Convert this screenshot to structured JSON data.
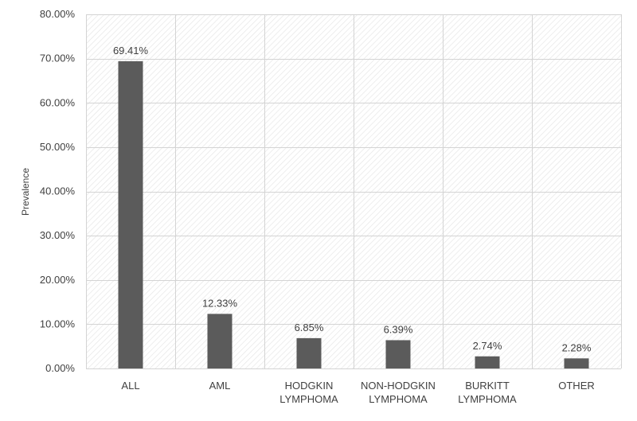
{
  "chart_data": {
    "type": "bar",
    "title": "",
    "xlabel": "",
    "ylabel": "Prevalence",
    "ylim": [
      0,
      80
    ],
    "y_ticks": [
      "0.00%",
      "10.00%",
      "20.00%",
      "30.00%",
      "40.00%",
      "50.00%",
      "60.00%",
      "70.00%",
      "80.00%"
    ],
    "y_tick_values": [
      0,
      10,
      20,
      30,
      40,
      50,
      60,
      70,
      80
    ],
    "categories": [
      [
        "ALL"
      ],
      [
        "AML"
      ],
      [
        "HODGKIN",
        "LYMPHOMA"
      ],
      [
        "NON-HODGKIN",
        "LYMPHOMA"
      ],
      [
        "BURKITT",
        "LYMPHOMA"
      ],
      [
        "OTHER"
      ]
    ],
    "values": [
      69.41,
      12.33,
      6.85,
      6.39,
      2.74,
      2.28
    ],
    "data_labels": [
      "69.41%",
      "12.33%",
      "6.85%",
      "6.39%",
      "2.74%",
      "2.28%"
    ],
    "grid": true,
    "legend": "none",
    "colors": {
      "bar": "#5b5b5b",
      "grid": "#d4d4d4",
      "plot_hatch": "#e3e3e3",
      "text": "#404040"
    }
  }
}
